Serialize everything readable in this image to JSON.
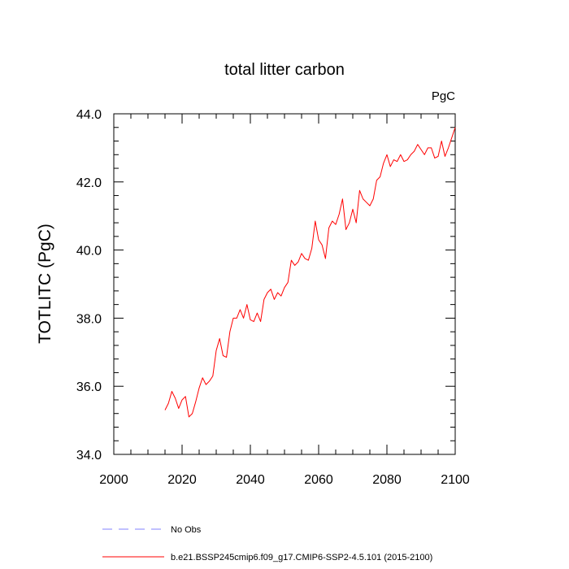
{
  "chart_data": {
    "type": "line",
    "title": "total litter carbon",
    "unit_label": "PgC",
    "xlabel": "",
    "ylabel": "TOTLITC  (PgC)",
    "xlim": [
      2000,
      2100
    ],
    "ylim": [
      34.0,
      44.0
    ],
    "x_ticks": [
      2000,
      2020,
      2040,
      2060,
      2080,
      2100
    ],
    "x_tick_labels": [
      "2000",
      "2020",
      "2040",
      "2060",
      "2080",
      "2100"
    ],
    "y_ticks": [
      34.0,
      36.0,
      38.0,
      40.0,
      42.0,
      44.0
    ],
    "y_tick_labels": [
      "34.0",
      "36.0",
      "38.0",
      "40.0",
      "42.0",
      "44.0"
    ],
    "grid": false,
    "legend_position": "bottom",
    "series": [
      {
        "name": "b.e21.BSSP245cmip6.f09_g17.CMIP6-SSP2-4.5.101 (2015-2100)",
        "color": "#ff0000",
        "style": "solid",
        "x": [
          2015,
          2016,
          2017,
          2018,
          2019,
          2020,
          2021,
          2022,
          2023,
          2024,
          2025,
          2026,
          2027,
          2028,
          2029,
          2030,
          2031,
          2032,
          2033,
          2034,
          2035,
          2036,
          2037,
          2038,
          2039,
          2040,
          2041,
          2042,
          2043,
          2044,
          2045,
          2046,
          2047,
          2048,
          2049,
          2050,
          2051,
          2052,
          2053,
          2054,
          2055,
          2056,
          2057,
          2058,
          2059,
          2060,
          2061,
          2062,
          2063,
          2064,
          2065,
          2066,
          2067,
          2068,
          2069,
          2070,
          2071,
          2072,
          2073,
          2074,
          2075,
          2076,
          2077,
          2078,
          2079,
          2080,
          2081,
          2082,
          2083,
          2084,
          2085,
          2086,
          2087,
          2088,
          2089,
          2090,
          2091,
          2092,
          2093,
          2094,
          2095,
          2096,
          2097,
          2098,
          2099,
          2100
        ],
        "values": [
          35.3,
          35.5,
          35.85,
          35.65,
          35.35,
          35.6,
          35.7,
          35.1,
          35.2,
          35.55,
          35.95,
          36.25,
          36.05,
          36.15,
          36.3,
          37.05,
          37.4,
          36.9,
          36.85,
          37.6,
          38.0,
          38.0,
          38.25,
          38.0,
          38.4,
          37.95,
          37.9,
          38.15,
          37.9,
          38.55,
          38.75,
          38.85,
          38.55,
          38.75,
          38.65,
          38.9,
          39.05,
          39.7,
          39.55,
          39.65,
          39.9,
          39.75,
          39.7,
          40.05,
          40.85,
          40.3,
          40.15,
          39.75,
          40.65,
          40.85,
          40.75,
          41.05,
          41.5,
          40.6,
          40.8,
          41.2,
          40.8,
          41.75,
          41.5,
          41.4,
          41.3,
          41.5,
          42.05,
          42.15,
          42.55,
          42.8,
          42.45,
          42.65,
          42.6,
          42.8,
          42.6,
          42.65,
          42.8,
          42.9,
          43.1,
          42.95,
          42.8,
          43.0,
          43.0,
          42.7,
          42.75,
          43.2,
          42.75,
          43.0,
          43.3,
          43.6
        ]
      }
    ],
    "legend_entries": [
      {
        "label": "No Obs",
        "color": "#8080ff",
        "style": "dashed"
      },
      {
        "label": "b.e21.BSSP245cmip6.f09_g17.CMIP6-SSP2-4.5.101 (2015-2100)",
        "color": "#ff0000",
        "style": "solid"
      }
    ]
  }
}
